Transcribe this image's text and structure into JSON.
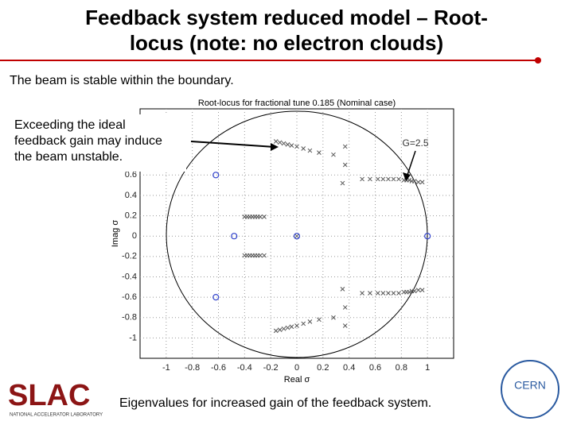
{
  "slide": {
    "title_lines": [
      "Feedback system reduced model – Root-",
      "locus (note: no electron clouds)"
    ],
    "subtitle": "The beam is stable within the boundary.",
    "annotation_lines": [
      "Exceeding the ideal",
      "feedback gain may induce",
      "the beam unstable."
    ],
    "caption": "Eigenvalues for increased gain of the feedback system.",
    "logo_left": "SLAC",
    "logo_left_sub": "NATIONAL ACCELERATOR LABORATORY",
    "logo_right": "CERN"
  },
  "chart_data": {
    "type": "scatter",
    "title": "Root-locus for fractional tune 0.185 (Nominal case)",
    "xlabel": "Real σ",
    "ylabel": "Imag σ",
    "annotation": "G=2.5",
    "xlim": [
      -1.2,
      1.2
    ],
    "ylim": [
      -1.2,
      1.25
    ],
    "xticks": [
      -1,
      -0.8,
      -0.6,
      -0.4,
      -0.2,
      0,
      0.2,
      0.4,
      0.6,
      0.8,
      1
    ],
    "yticks": [
      -1,
      -0.8,
      -0.6,
      -0.4,
      -0.2,
      0,
      0.2,
      0.4,
      0.6
    ],
    "grid": true,
    "series": [
      {
        "marker": "cross",
        "color": "#555555",
        "x": [
          -0.16,
          -0.13,
          -0.1,
          -0.07,
          -0.04,
          0,
          0.05,
          0.1,
          0.17,
          0.28,
          0.37,
          0.37,
          0.35,
          0.5,
          0.56,
          0.62,
          0.66,
          0.7,
          0.74,
          0.78,
          0.82,
          0.84,
          0.86,
          0.88,
          0.9,
          0.93,
          0.96,
          -0.4,
          -0.38,
          -0.36,
          -0.34,
          -0.32,
          -0.3,
          -0.28,
          -0.25,
          0,
          -0.16,
          -0.13,
          -0.1,
          -0.07,
          -0.04,
          0,
          0.05,
          0.1,
          0.17,
          0.28,
          0.37,
          0.37,
          0.35,
          0.5,
          0.56,
          0.62,
          0.66,
          0.7,
          0.74,
          0.78,
          0.82,
          0.84,
          0.86,
          0.88,
          0.9,
          0.93,
          0.96,
          -0.4,
          -0.38,
          -0.36,
          -0.34,
          -0.32,
          -0.3,
          -0.28,
          -0.25
        ],
        "y": [
          0.93,
          0.92,
          0.91,
          0.9,
          0.89,
          0.88,
          0.86,
          0.84,
          0.82,
          0.8,
          0.88,
          0.7,
          0.52,
          0.56,
          0.56,
          0.56,
          0.56,
          0.56,
          0.56,
          0.56,
          0.55,
          0.55,
          0.55,
          0.54,
          0.54,
          0.53,
          0.53,
          0.19,
          0.19,
          0.19,
          0.19,
          0.19,
          0.19,
          0.19,
          0.19,
          0,
          -0.93,
          -0.92,
          -0.91,
          -0.9,
          -0.89,
          -0.88,
          -0.86,
          -0.84,
          -0.82,
          -0.8,
          -0.88,
          -0.7,
          -0.52,
          -0.56,
          -0.56,
          -0.56,
          -0.56,
          -0.56,
          -0.56,
          -0.56,
          -0.55,
          -0.55,
          -0.55,
          -0.54,
          -0.54,
          -0.53,
          -0.53,
          -0.19,
          -0.19,
          -0.19,
          -0.19,
          -0.19,
          -0.19,
          -0.19,
          -0.19
        ]
      },
      {
        "marker": "circle",
        "color": "#3344cc",
        "x": [
          -0.62,
          -0.48,
          -0.62,
          0,
          1
        ],
        "y": [
          0.6,
          0,
          -0.6,
          0,
          0
        ]
      }
    ]
  }
}
